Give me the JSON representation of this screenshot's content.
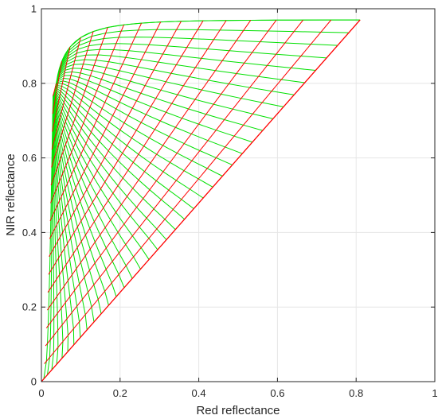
{
  "chart_data": {
    "type": "line",
    "xlabel": "Red reflectance",
    "ylabel": "NIR reflectance",
    "xlim": [
      0,
      1
    ],
    "ylim": [
      0,
      1
    ],
    "xticks": [
      "0",
      "0.2",
      "0.4",
      "0.6",
      "0.8",
      "1"
    ],
    "yticks": [
      "0",
      "0.2",
      "0.4",
      "0.6",
      "0.8",
      "1"
    ],
    "grid": true,
    "colors": {
      "red_lines": "#ff0000",
      "green_lines": "#00e000",
      "grid": "#e6e6e6",
      "axes": "#262626"
    },
    "soil_line_end": [
      0.81,
      0.97
    ],
    "series": [
      {
        "color": "red",
        "description": "isolines of constant vegetation fraction",
        "lines": [
          [
            [
              0,
              0
            ],
            [
              0.81,
              0.97
            ]
          ],
          [
            [
              0.0,
              0.05
            ],
            [
              0.67,
              0.962
            ]
          ],
          [
            [
              0.0,
              0.1
            ],
            [
              0.545,
              0.952
            ]
          ],
          [
            [
              0.0,
              0.15
            ],
            [
              0.44,
              0.942
            ]
          ],
          [
            [
              0.01,
              0.2
            ],
            [
              0.355,
              0.93
            ]
          ],
          [
            [
              0.01,
              0.25
            ],
            [
              0.28,
              0.918
            ]
          ],
          [
            [
              0.01,
              0.3
            ],
            [
              0.215,
              0.905
            ]
          ],
          [
            [
              0.015,
              0.35
            ],
            [
              0.165,
              0.893
            ]
          ],
          [
            [
              0.015,
              0.4
            ],
            [
              0.13,
              0.88
            ]
          ],
          [
            [
              0.02,
              0.45
            ],
            [
              0.1,
              0.867
            ]
          ],
          [
            [
              0.02,
              0.5
            ],
            [
              0.075,
              0.853
            ]
          ],
          [
            [
              0.025,
              0.55
            ],
            [
              0.057,
              0.84
            ]
          ],
          [
            [
              0.025,
              0.6
            ],
            [
              0.045,
              0.825
            ]
          ],
          [
            [
              0.028,
              0.65
            ],
            [
              0.037,
              0.81
            ]
          ],
          [
            [
              0.03,
              0.7
            ],
            [
              0.033,
              0.79
            ]
          ]
        ]
      },
      {
        "color": "green",
        "description": "curves of constant leaf area index",
        "lines": [
          [
            [
              0.0,
              0.05
            ],
            [
              0.045,
              0.094
            ],
            [
              0.09,
              0.138
            ],
            [
              0.13,
              0.175
            ],
            [
              0.25,
              0.28
            ],
            [
              0.42,
              0.42
            ],
            [
              0.62,
              0.59
            ],
            [
              0.81,
              0.97
            ]
          ],
          [
            [
              0.03,
              0.78
            ],
            [
              0.05,
              0.865
            ],
            [
              0.1,
              0.895
            ],
            [
              0.2,
              0.915
            ],
            [
              0.35,
              0.935
            ],
            [
              0.5,
              0.95
            ],
            [
              0.65,
              0.962
            ],
            [
              0.81,
              0.97
            ]
          ]
        ]
      }
    ]
  }
}
